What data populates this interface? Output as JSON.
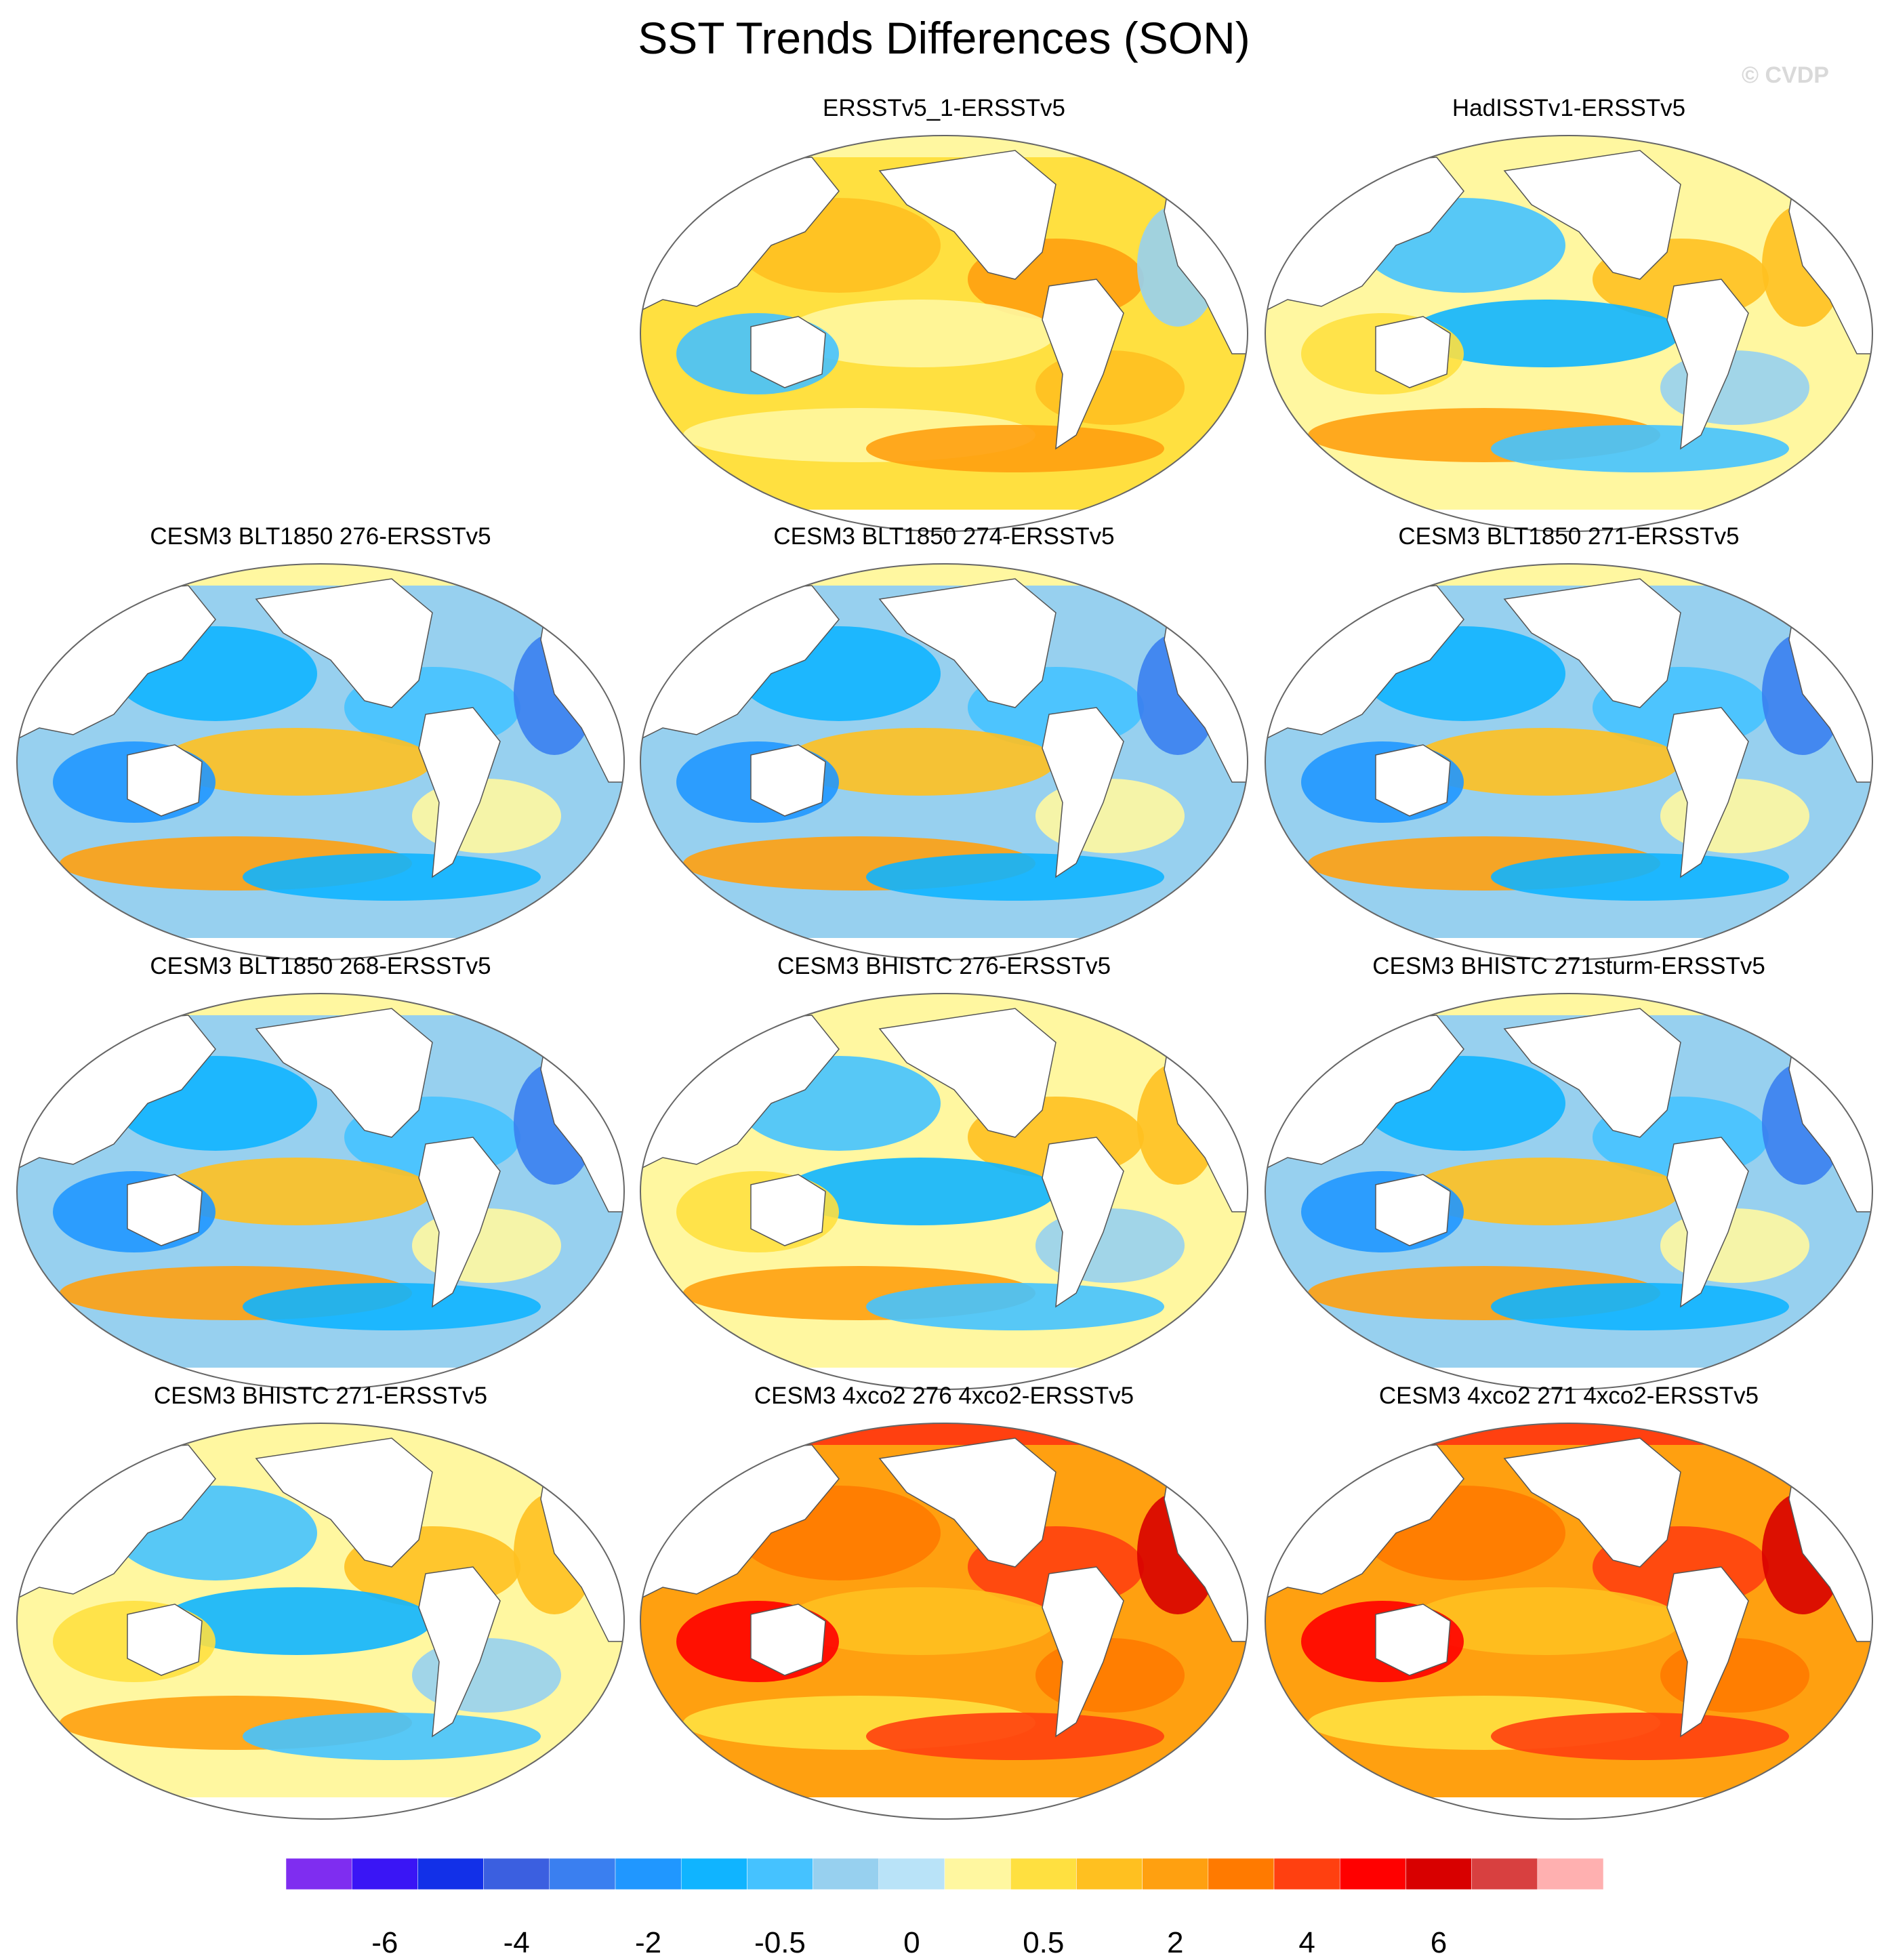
{
  "title": "SST Trends Differences (SON)",
  "watermark": "© CVDP",
  "panels": [
    {
      "title": "ERSSTv5_1-ERSSTv5",
      "row": 0,
      "col": 1,
      "scheme": "warm"
    },
    {
      "title": "HadISSTv1-ERSSTv5",
      "row": 0,
      "col": 2,
      "scheme": "mixed"
    },
    {
      "title": "CESM3 BLT1850 276-ERSSTv5",
      "row": 1,
      "col": 0,
      "scheme": "cool"
    },
    {
      "title": "CESM3 BLT1850 274-ERSSTv5",
      "row": 1,
      "col": 1,
      "scheme": "cool"
    },
    {
      "title": "CESM3 BLT1850 271-ERSSTv5",
      "row": 1,
      "col": 2,
      "scheme": "cool"
    },
    {
      "title": "CESM3 BLT1850 268-ERSSTv5",
      "row": 2,
      "col": 0,
      "scheme": "cool"
    },
    {
      "title": "CESM3 BHISTC 276-ERSSTv5",
      "row": 2,
      "col": 1,
      "scheme": "mixed"
    },
    {
      "title": "CESM3 BHISTC 271sturm-ERSSTv5",
      "row": 2,
      "col": 2,
      "scheme": "cool"
    },
    {
      "title": "CESM3 BHISTC 271-ERSSTv5",
      "row": 3,
      "col": 0,
      "scheme": "mixed"
    },
    {
      "title": "CESM3 4xco2 276 4xco2-ERSSTv5",
      "row": 3,
      "col": 1,
      "scheme": "hot"
    },
    {
      "title": "CESM3 4xco2 271 4xco2-ERSSTv5",
      "row": 3,
      "col": 2,
      "scheme": "hot"
    }
  ],
  "colorbar": {
    "colors": [
      "#7f2df0",
      "#3a15f5",
      "#1230e8",
      "#3b5fe0",
      "#3a7ff0",
      "#2097ff",
      "#10b4ff",
      "#45c2ff",
      "#97d0ef",
      "#b9e3f8",
      "#fff7a0",
      "#ffe040",
      "#ffc020",
      "#ffa010",
      "#ff7a00",
      "#ff4010",
      "#ff0000",
      "#d80000",
      "#d84040",
      "#ffb0b0"
    ],
    "labels": [
      "-6",
      "-4",
      "-2",
      "-0.5",
      "0",
      "0.5",
      "2",
      "4",
      "6"
    ],
    "label_boundaries": [
      2,
      4,
      6,
      8,
      10,
      12,
      14,
      16,
      18
    ]
  }
}
